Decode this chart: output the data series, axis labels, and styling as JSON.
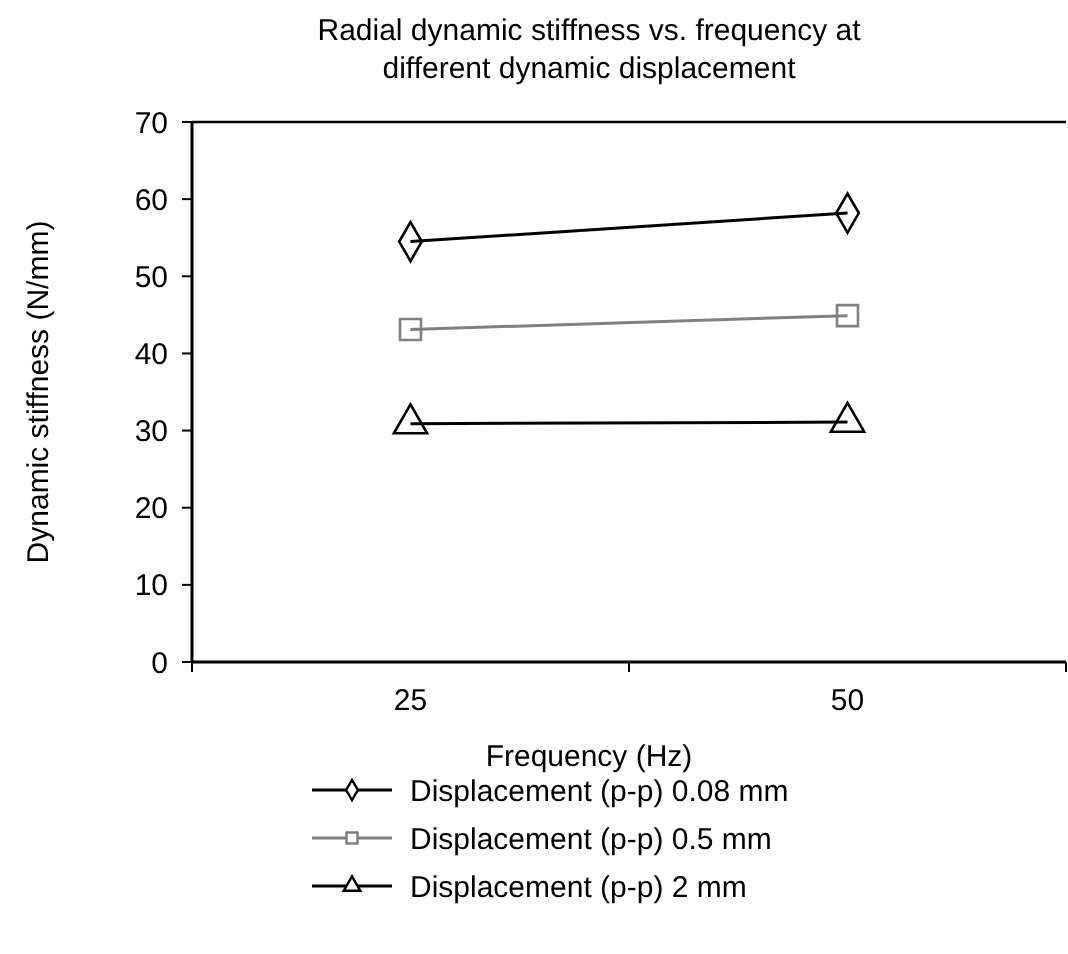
{
  "chart_data": {
    "type": "line",
    "title": "Radial dynamic stiffness vs. frequency at different dynamic displacement",
    "xlabel": "Frequency (Hz)",
    "ylabel": "Dynamic stiffness (N/mm)",
    "categories": [
      "25",
      "50"
    ],
    "ylim": [
      0,
      70
    ],
    "yticks": [
      0,
      10,
      20,
      30,
      40,
      50,
      60,
      70
    ],
    "grid": false,
    "legend": "bottom",
    "line_style": "solid",
    "series": [
      {
        "name": "Displacement (p-p) 0.08 mm",
        "color": "#000000",
        "marker": "diamond",
        "values": [
          54.5,
          58.2
        ]
      },
      {
        "name": "Displacement (p-p) 0.5 mm",
        "color": "#808080",
        "marker": "square",
        "values": [
          43.1,
          44.9
        ]
      },
      {
        "name": "Displacement (p-p) 2 mm",
        "color": "#000000",
        "marker": "triangle",
        "values": [
          30.9,
          31.1
        ]
      }
    ]
  }
}
